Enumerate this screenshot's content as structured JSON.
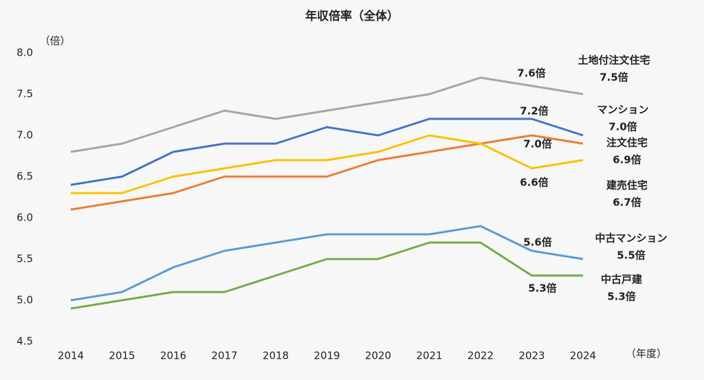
{
  "chart_data": {
    "type": "line",
    "title": "年収倍率（全体）",
    "y_label": "（倍）",
    "x_label": "（年度）",
    "categories": [
      "2014",
      "2015",
      "2016",
      "2017",
      "2018",
      "2019",
      "2020",
      "2021",
      "2022",
      "2023",
      "2024"
    ],
    "ylim": [
      4.5,
      8.0
    ],
    "yticks": [
      {
        "value": 8.0,
        "label": "8.0"
      },
      7.5,
      {
        "value": 7.0,
        "label": "7.0"
      },
      6.5,
      {
        "value": 6.0,
        "label": "6.0"
      },
      5.5,
      {
        "value": 5.0,
        "label": "5.0"
      },
      4.5
    ],
    "grid": false,
    "series": [
      {
        "name": "土地付注文住宅",
        "color": "#a5a5a5",
        "values": [
          6.8,
          6.9,
          7.1,
          7.3,
          7.2,
          7.3,
          7.4,
          7.5,
          7.7,
          7.6,
          7.5
        ],
        "value_labels": [
          null,
          null,
          null,
          null,
          null,
          null,
          null,
          null,
          null,
          "7.6倍",
          "7.5倍"
        ]
      },
      {
        "name": "マンション",
        "color": "#4472c4",
        "values": [
          6.4,
          6.5,
          6.8,
          6.9,
          6.9,
          7.1,
          7.0,
          7.2,
          7.2,
          7.2,
          7.0
        ],
        "value_labels": [
          null,
          null,
          null,
          null,
          null,
          null,
          null,
          null,
          null,
          "7.2倍",
          "7.0倍"
        ]
      },
      {
        "name": "注文住宅",
        "color": "#ed7d31",
        "values": [
          6.1,
          6.2,
          6.3,
          6.5,
          6.5,
          6.5,
          6.7,
          6.8,
          6.9,
          7.0,
          6.9
        ],
        "value_labels": [
          null,
          null,
          null,
          null,
          null,
          null,
          null,
          null,
          null,
          "7.0倍",
          "6.9倍"
        ]
      },
      {
        "name": "建売住宅",
        "color": "#ffc000",
        "values": [
          6.3,
          6.3,
          6.5,
          6.6,
          6.7,
          6.7,
          6.8,
          7.0,
          6.9,
          6.6,
          6.7
        ],
        "value_labels": [
          null,
          null,
          null,
          null,
          null,
          null,
          null,
          null,
          null,
          "6.6倍",
          "6.7倍"
        ]
      },
      {
        "name": "中古マンション",
        "color": "#5b9bd5",
        "values": [
          5.0,
          5.1,
          5.4,
          5.6,
          5.7,
          5.8,
          5.8,
          5.8,
          5.9,
          5.6,
          5.5
        ],
        "value_labels": [
          null,
          null,
          null,
          null,
          null,
          null,
          null,
          null,
          null,
          "5.6倍",
          "5.5倍"
        ]
      },
      {
        "name": "中古戸建",
        "color": "#70ad47",
        "values": [
          4.9,
          5.0,
          5.1,
          5.1,
          5.3,
          5.5,
          5.5,
          5.7,
          5.7,
          5.3,
          5.3
        ],
        "value_labels": [
          null,
          null,
          null,
          null,
          null,
          null,
          null,
          null,
          null,
          "5.3倍",
          "5.3倍"
        ]
      }
    ]
  }
}
